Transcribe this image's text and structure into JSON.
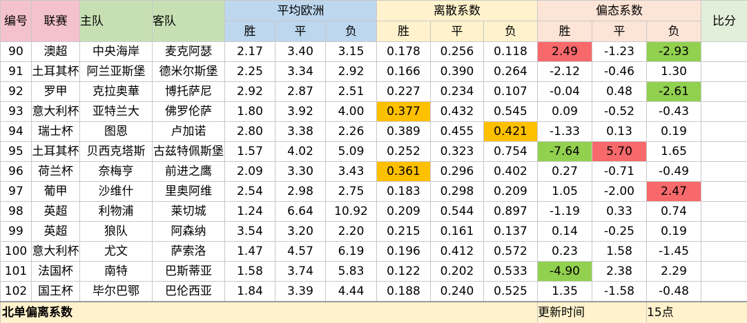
{
  "header": {
    "columns": [
      "编号",
      "联赛",
      "主队",
      "客队"
    ],
    "groups": [
      {
        "title": "平均欧洲",
        "sub": [
          "胜",
          "平",
          "负"
        ]
      },
      {
        "title": "离散系数",
        "sub": [
          "胜",
          "平",
          "负"
        ]
      },
      {
        "title": "偏态系数",
        "sub": [
          "胜",
          "平",
          "负"
        ]
      }
    ],
    "last": "比分"
  },
  "rows": [
    [
      "90",
      "澳超",
      "中央海岸",
      "麦克阿瑟",
      "2.17",
      "3.40",
      "3.15",
      "0.178",
      "0.256",
      "0.118",
      {
        "text": "2.49",
        "color": "#f8696b"
      },
      "-1.23",
      {
        "text": "-2.93",
        "color": "#92d050"
      }
    ],
    [
      "91",
      "土耳其杯",
      "阿兰亚斯堡",
      "德米尔斯堡",
      "2.25",
      "3.34",
      "2.92",
      "0.166",
      "0.390",
      "0.264",
      "-2.12",
      "-0.46",
      "1.30"
    ],
    [
      "92",
      "罗甲",
      "克拉奥華",
      "博托萨尼",
      "2.92",
      "2.87",
      "2.51",
      "0.227",
      "0.234",
      "0.107",
      "-0.04",
      "0.48",
      {
        "text": "-2.61",
        "color": "#92d050"
      }
    ],
    [
      "93",
      "意大利杯",
      "亚特兰大",
      "佛罗伦萨",
      "1.80",
      "3.92",
      "4.00",
      {
        "text": "0.377",
        "color": "#ffc000"
      },
      "0.432",
      "0.545",
      "0.09",
      "-0.52",
      "-0.43"
    ],
    [
      "94",
      "瑞士杯",
      "图恩",
      "卢加诺",
      "2.80",
      "3.38",
      "2.26",
      "0.389",
      "0.455",
      {
        "text": "0.421",
        "color": "#ffc000"
      },
      "-1.33",
      "0.13",
      "0.19"
    ],
    [
      "95",
      "土耳其杯",
      "贝西克塔斯",
      "古兹特佩斯堡",
      "1.57",
      "4.02",
      "5.09",
      "0.252",
      "0.323",
      "0.754",
      {
        "text": "-7.64",
        "color": "#92d050"
      },
      {
        "text": "5.70",
        "color": "#f8696b"
      },
      "1.65"
    ],
    [
      "96",
      "荷兰杯",
      "奈梅亨",
      "前进之鹰",
      "2.09",
      "3.30",
      "3.43",
      {
        "text": "0.361",
        "color": "#ffc000"
      },
      "0.296",
      "0.402",
      "0.27",
      "-0.71",
      "-0.49"
    ],
    [
      "97",
      "葡甲",
      "沙维什",
      "里奥阿维",
      "2.54",
      "2.98",
      "2.75",
      "0.183",
      "0.298",
      "0.209",
      "1.05",
      "-2.00",
      {
        "text": "2.47",
        "color": "#f8696b"
      }
    ],
    [
      "98",
      "英超",
      "利物浦",
      "莱切城",
      "1.24",
      "6.64",
      "10.92",
      "0.209",
      "0.544",
      "0.897",
      "-1.19",
      "0.33",
      "0.74"
    ],
    [
      "99",
      "英超",
      "狼队",
      "阿森纳",
      "3.54",
      "3.20",
      "2.20",
      "0.215",
      "0.161",
      "0.137",
      "0.14",
      "-0.25",
      "0.19"
    ],
    [
      "100",
      "意大利杯",
      "尤文",
      "萨索洛",
      "1.47",
      "4.57",
      "6.19",
      "0.196",
      "0.412",
      "0.572",
      "0.23",
      "1.58",
      "-1.45"
    ],
    [
      "101",
      "法国杯",
      "南特",
      "巴斯蒂亚",
      "1.58",
      "3.74",
      "5.83",
      "0.122",
      "0.202",
      "0.533",
      {
        "text": "-4.90",
        "color": "#92d050"
      },
      "2.38",
      "2.29"
    ],
    [
      "102",
      "国王杯",
      "毕尔巴鄂",
      "巴伦西亚",
      "1.84",
      "3.39",
      "4.44",
      "0.188",
      "0.240",
      "0.525",
      "1.35",
      "-1.58",
      "-0.48"
    ]
  ],
  "footer": {
    "title": "北单偏离系数",
    "update_label": "更新时间",
    "update_value": "15点"
  }
}
